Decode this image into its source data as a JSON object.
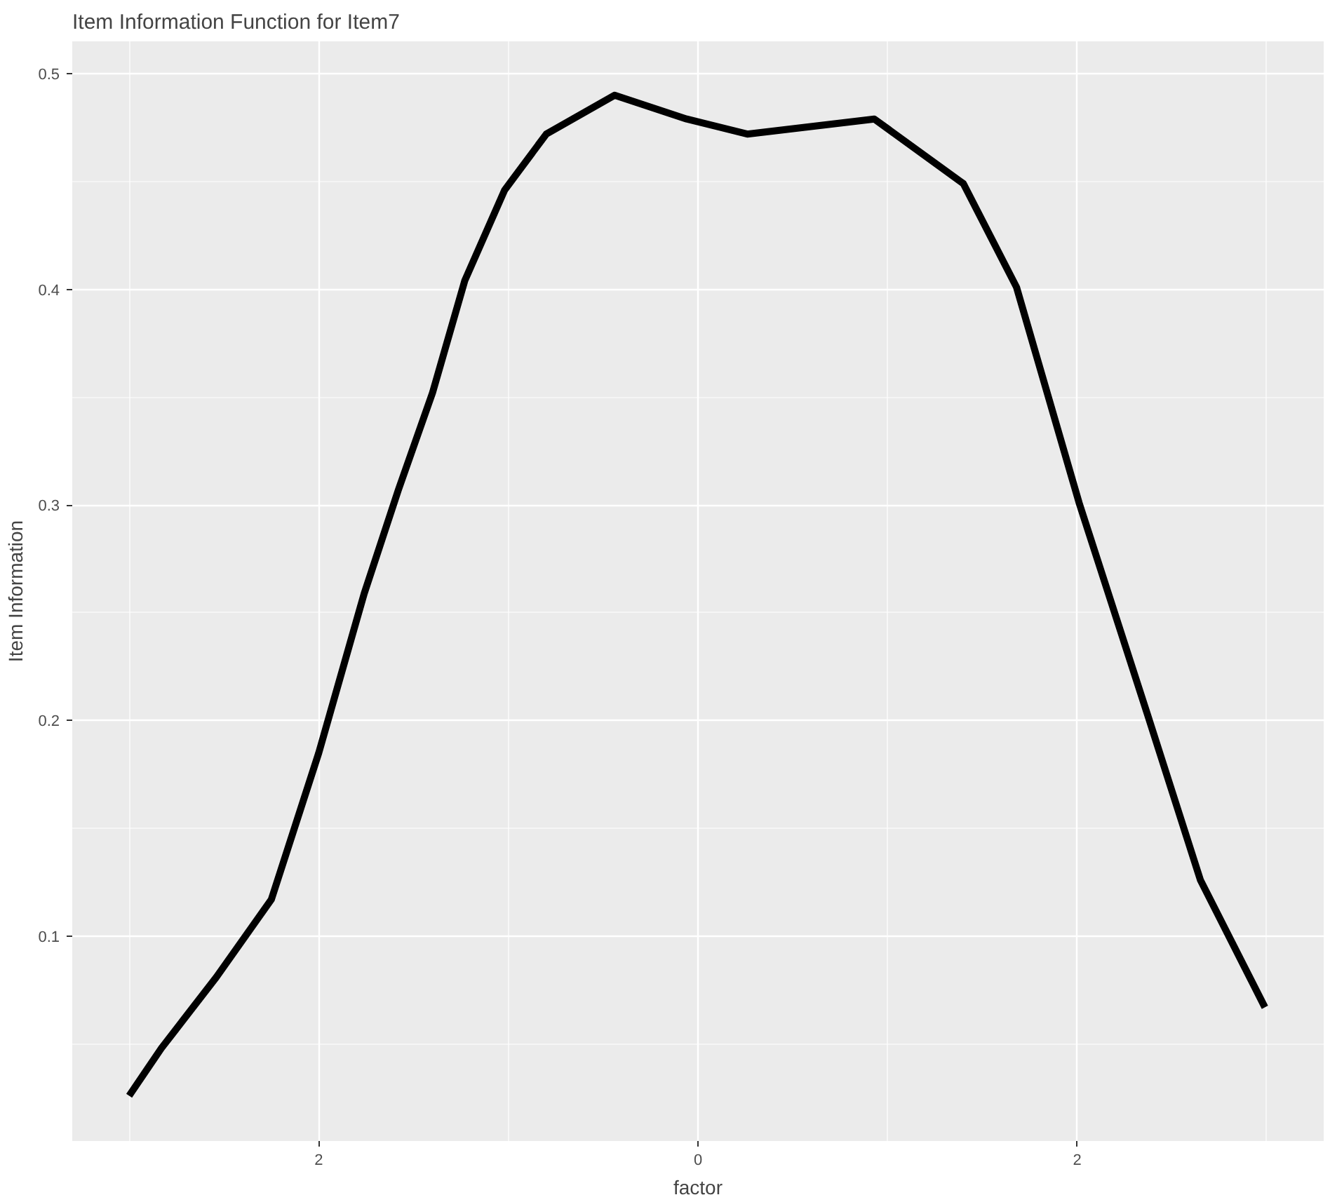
{
  "chart_data": {
    "type": "line",
    "title": "Item Information Function for Item7",
    "xlabel": "factor",
    "ylabel": "Item Information",
    "x": [
      -3.0,
      -2.83,
      -2.54,
      -2.25,
      -2.0,
      -1.76,
      -1.58,
      -1.4,
      -1.23,
      -1.02,
      -0.8,
      -0.44,
      -0.06,
      0.26,
      0.93,
      1.4,
      1.68,
      2.01,
      2.37,
      2.65,
      2.99
    ],
    "series": [
      {
        "color": "#000000",
        "values": [
          0.026,
          0.048,
          0.081,
          0.117,
          0.185,
          0.259,
          0.307,
          0.352,
          0.404,
          0.446,
          0.472,
          0.49,
          0.479,
          0.472,
          0.479,
          0.449,
          0.401,
          0.301,
          0.203,
          0.126,
          0.067
        ]
      }
    ],
    "xlim": [
      -3.3,
      3.3
    ],
    "ylim": [
      0.005,
      0.515
    ],
    "xticks": [
      {
        "value": -2,
        "label": "2"
      },
      0,
      2
    ],
    "yticks": [
      0.1,
      0.2,
      0.3,
      0.4,
      0.5
    ],
    "grid": true,
    "line_style": "solid"
  }
}
